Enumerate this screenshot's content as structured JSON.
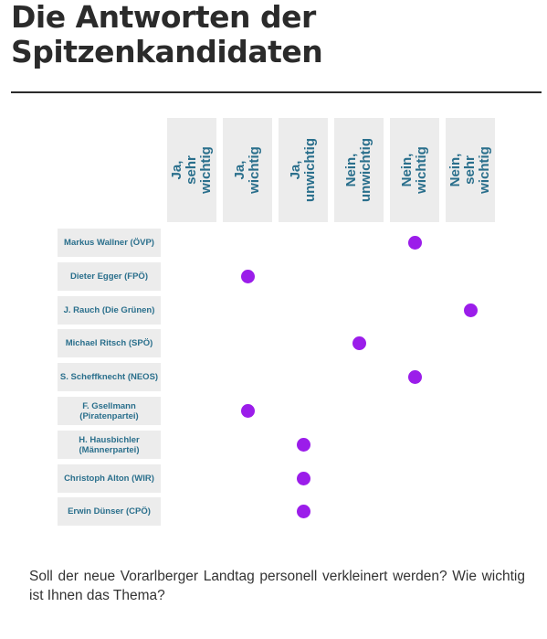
{
  "heading": {
    "line1": "Die Antworten der",
    "line2": "Spitzenkandidaten"
  },
  "question": "Soll der neue Vorarlberger Landtag personell verkleinert werden? Wie wichtig ist Ihnen das Thema?",
  "colors": {
    "dot": "#9b1dea",
    "header_text": "#2a6f8c",
    "header_bg": "#ececec"
  },
  "chart_data": {
    "type": "scatter",
    "categories_x": [
      "Ja, sehr wichtig",
      "Ja, wichtig",
      "Ja, unwichtig",
      "Nein, unwichtig",
      "Nein, wichtig",
      "Nein, sehr wichtig"
    ],
    "categories_y": [
      "Markus Wallner (ÖVP)",
      "Dieter Egger (FPÖ)",
      "J. Rauch (Die Grünen)",
      "Michael Ritsch (SPÖ)",
      "S. Scheffknecht (NEOS)",
      "F. Gsellmann (Piratenpartei)",
      "H. Hausbichler (Männerpartei)",
      "Christoph Alton (WIR)",
      "Erwin Dünser (CPÖ)"
    ],
    "points": [
      {
        "candidate": "Markus Wallner (ÖVP)",
        "answer": "Nein, wichtig"
      },
      {
        "candidate": "Dieter Egger (FPÖ)",
        "answer": "Ja, wichtig"
      },
      {
        "candidate": "J. Rauch (Die Grünen)",
        "answer": "Nein, sehr wichtig"
      },
      {
        "candidate": "Michael Ritsch (SPÖ)",
        "answer": "Nein, unwichtig"
      },
      {
        "candidate": "S. Scheffknecht (NEOS)",
        "answer": "Nein, wichtig"
      },
      {
        "candidate": "F. Gsellmann (Piratenpartei)",
        "answer": "Ja, wichtig"
      },
      {
        "candidate": "H. Hausbichler (Männerpartei)",
        "answer": "Ja, unwichtig"
      },
      {
        "candidate": "Christoph Alton (WIR)",
        "answer": "Ja, unwichtig"
      },
      {
        "candidate": "Erwin Dünser (CPÖ)",
        "answer": "Ja, unwichtig"
      }
    ]
  }
}
